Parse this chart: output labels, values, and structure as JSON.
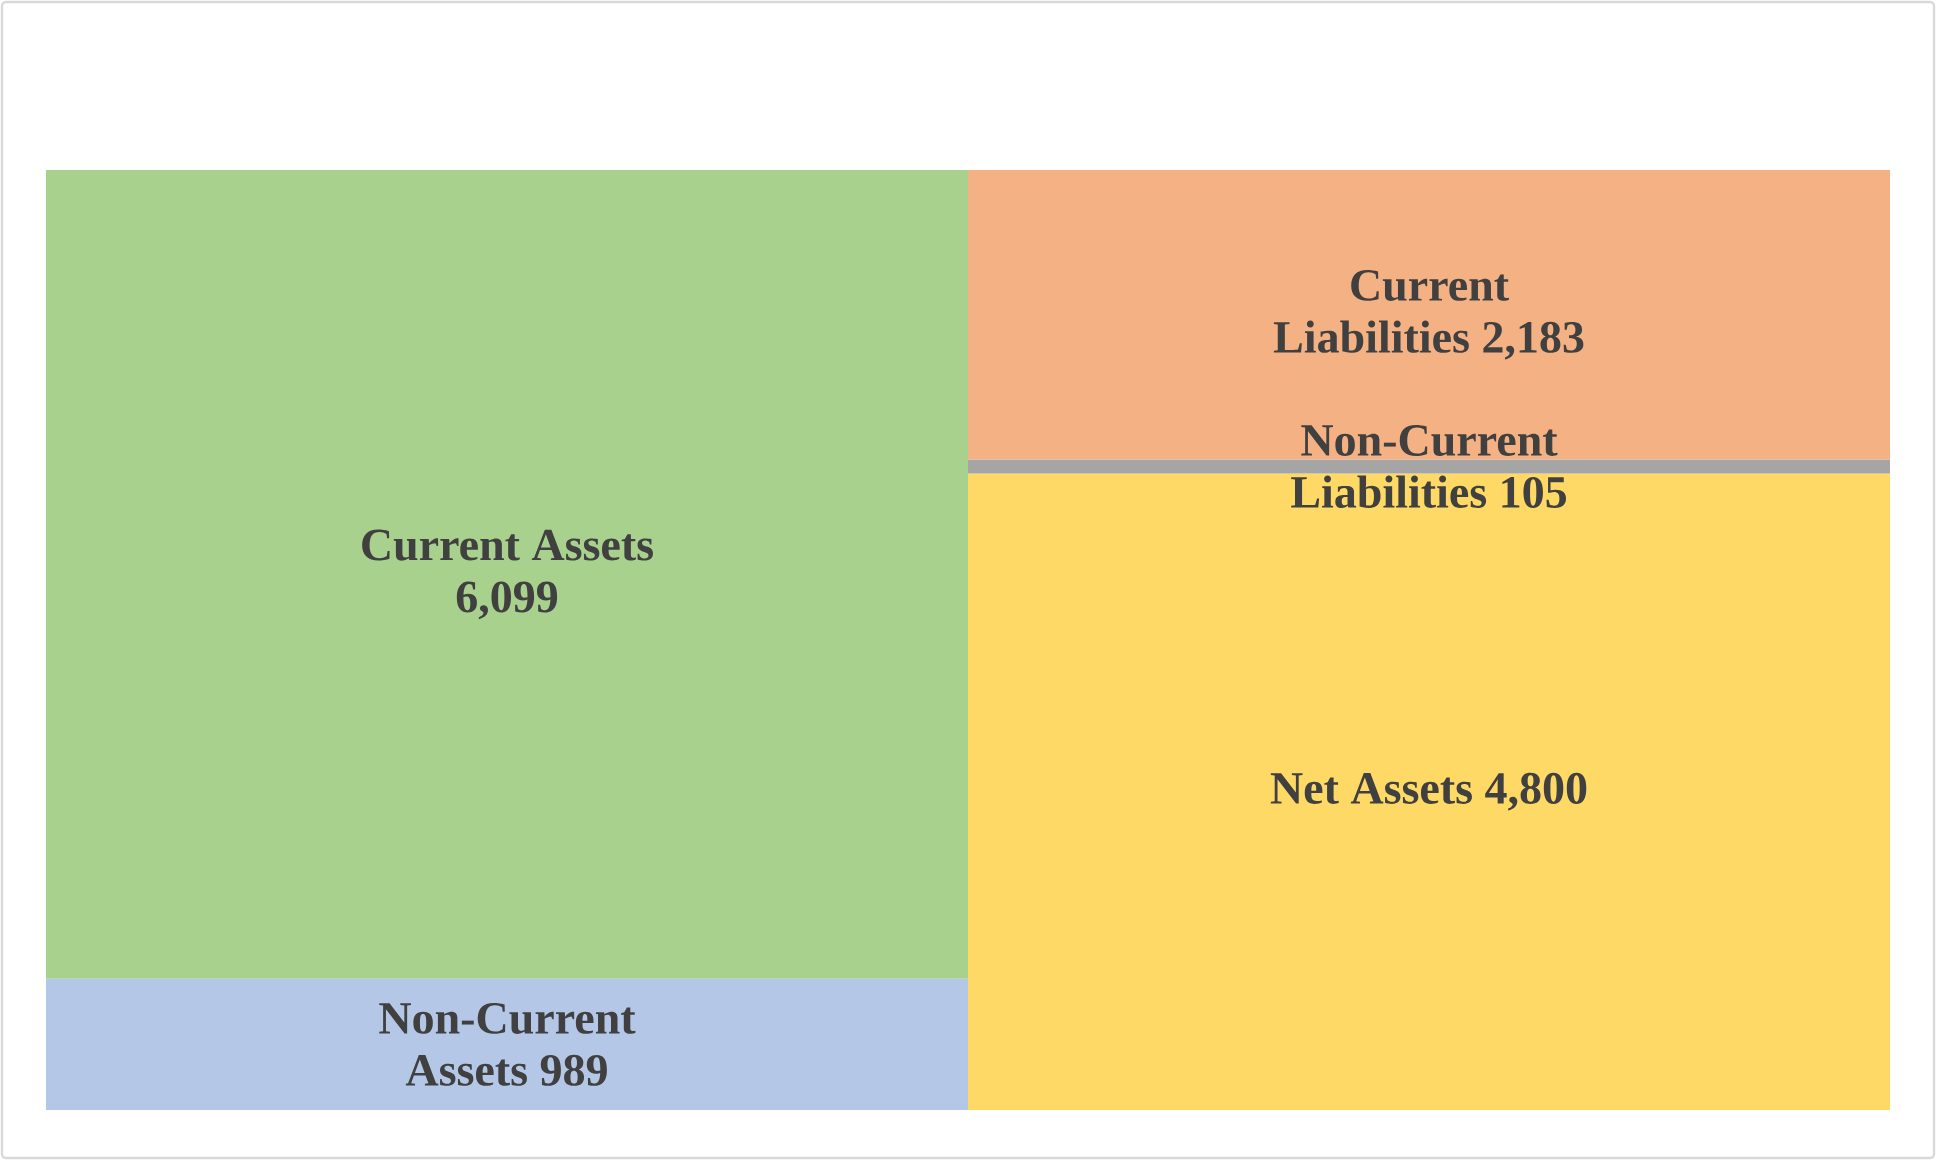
{
  "chart_data": {
    "type": "bar",
    "stacked": true,
    "categories": [
      null,
      null
    ],
    "ylim": [
      0,
      7088
    ],
    "tick_labels": false,
    "series": [
      {
        "color": "#b4c7e7",
        "values": [
          989,
          null
        ],
        "value_labels": [
          "Non-Current Assets 989",
          null
        ]
      },
      {
        "color": "#a9d18e",
        "values": [
          6099,
          null
        ],
        "value_labels": [
          "Current Assets 6,099",
          null
        ]
      },
      {
        "color": "#ffd966",
        "values": [
          null,
          4800
        ],
        "value_labels": [
          null,
          "Net Assets 4,800"
        ]
      },
      {
        "color": "#a5a5a5",
        "values": [
          null,
          105
        ],
        "value_labels": [
          null,
          "Non-Current Liabilities 105"
        ]
      },
      {
        "color": "#f4b183",
        "values": [
          null,
          2183
        ],
        "value_labels": [
          null,
          "Current Liabilities 2,183"
        ]
      }
    ]
  }
}
